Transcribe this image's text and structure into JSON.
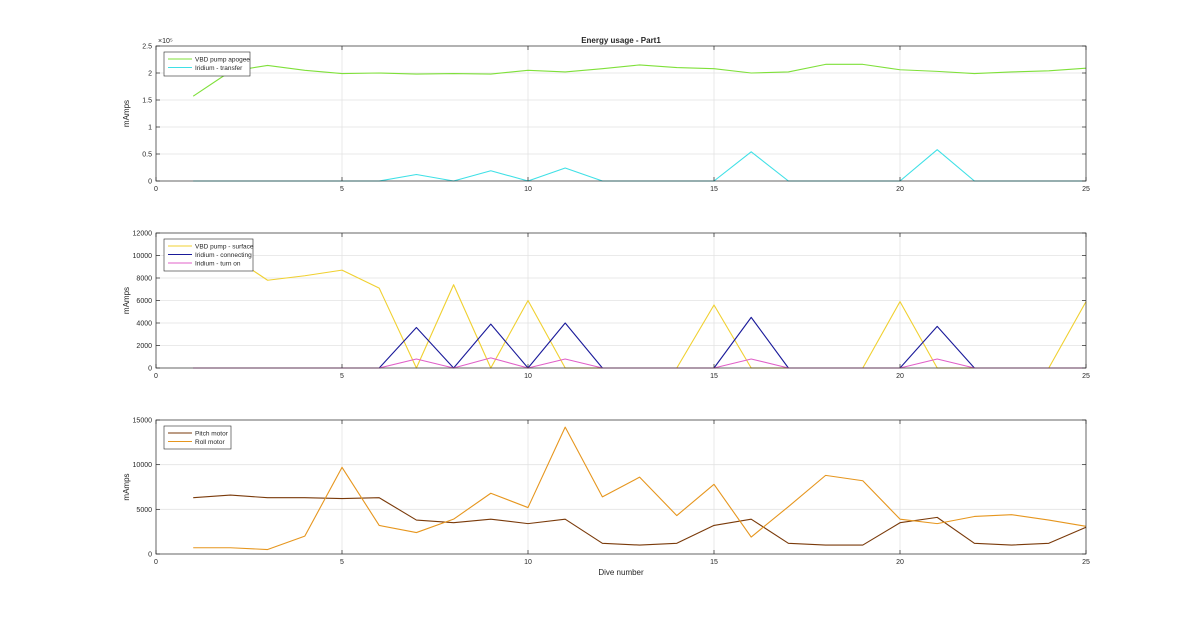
{
  "figure_title": "Energy usage - Part1",
  "chart_data": [
    {
      "type": "line",
      "title": "Energy usage - Part1",
      "xlabel": "",
      "ylabel": "mAmps",
      "xlim": [
        0,
        25
      ],
      "ylim": [
        0,
        250000
      ],
      "xticks": [
        0,
        5,
        10,
        15,
        20,
        25
      ],
      "yticks": [
        0,
        50000,
        100000,
        150000,
        200000,
        250000
      ],
      "ytick_labels": [
        "0",
        "0.5",
        "1",
        "1.5",
        "2",
        "2.5"
      ],
      "y_exponent_label": "×10⁵",
      "grid": true,
      "legend_position": "top-left",
      "x": [
        1,
        2,
        3,
        4,
        5,
        6,
        7,
        8,
        9,
        10,
        11,
        12,
        13,
        14,
        15,
        16,
        17,
        18,
        19,
        20,
        21,
        22,
        23,
        24,
        25
      ],
      "series": [
        {
          "name": "VBD pump apogee",
          "color": "#7fe03a",
          "values": [
            157000,
            203000,
            214000,
            205000,
            199000,
            200000,
            198000,
            199000,
            198000,
            205000,
            202000,
            208000,
            215000,
            210000,
            208000,
            200000,
            202000,
            216000,
            216000,
            206000,
            203000,
            199000,
            202000,
            204000,
            209000
          ]
        },
        {
          "name": "Iridium - transfer",
          "color": "#3fe0e6",
          "values": [
            0,
            0,
            0,
            0,
            0,
            0,
            12000,
            0,
            19000,
            0,
            24000,
            0,
            0,
            0,
            0,
            54000,
            0,
            0,
            0,
            0,
            58000,
            0,
            0,
            0,
            0
          ]
        }
      ]
    },
    {
      "type": "line",
      "title": "",
      "xlabel": "",
      "ylabel": "mAmps",
      "xlim": [
        0,
        25
      ],
      "ylim": [
        0,
        12000
      ],
      "xticks": [
        0,
        5,
        10,
        15,
        20,
        25
      ],
      "yticks": [
        0,
        2000,
        4000,
        6000,
        8000,
        10000,
        12000
      ],
      "ytick_labels": [
        "0",
        "2000",
        "4000",
        "6000",
        "8000",
        "10000",
        "12000"
      ],
      "grid": true,
      "legend_position": "top-left",
      "x": [
        1,
        2,
        3,
        4,
        5,
        6,
        7,
        8,
        9,
        10,
        11,
        12,
        13,
        14,
        15,
        16,
        17,
        18,
        19,
        20,
        21,
        22,
        23,
        24,
        25
      ],
      "series": [
        {
          "name": "VBD pump - surface",
          "color": "#f0d030",
          "values": [
            10500,
            10000,
            7800,
            8200,
            8700,
            7100,
            0,
            7400,
            0,
            6000,
            0,
            0,
            0,
            0,
            5600,
            0,
            0,
            0,
            0,
            5900,
            0,
            0,
            0,
            0,
            5900
          ]
        },
        {
          "name": "Iridium - connecting",
          "color": "#1a1a9a",
          "values": [
            0,
            0,
            0,
            0,
            0,
            0,
            3600,
            0,
            3900,
            0,
            4000,
            0,
            0,
            0,
            0,
            4500,
            0,
            0,
            0,
            0,
            3700,
            0,
            0,
            0,
            0
          ]
        },
        {
          "name": "Iridium - turn on",
          "color": "#e060c8",
          "values": [
            0,
            0,
            0,
            0,
            0,
            0,
            800,
            0,
            900,
            0,
            800,
            0,
            0,
            0,
            0,
            800,
            0,
            0,
            0,
            0,
            800,
            0,
            0,
            0,
            0
          ]
        }
      ]
    },
    {
      "type": "line",
      "title": "",
      "xlabel": "Dive number",
      "ylabel": "mAmps",
      "xlim": [
        0,
        25
      ],
      "ylim": [
        0,
        15000
      ],
      "xticks": [
        0,
        5,
        10,
        15,
        20,
        25
      ],
      "yticks": [
        0,
        5000,
        10000,
        15000
      ],
      "ytick_labels": [
        "0",
        "5000",
        "10000",
        "15000"
      ],
      "grid": true,
      "legend_position": "top-left",
      "x": [
        1,
        2,
        3,
        4,
        5,
        6,
        7,
        8,
        9,
        10,
        11,
        12,
        13,
        14,
        15,
        16,
        17,
        18,
        19,
        20,
        21,
        22,
        23,
        24,
        25
      ],
      "series": [
        {
          "name": "Pitch motor",
          "color": "#7a3a0a",
          "values": [
            6300,
            6600,
            6300,
            6300,
            6200,
            6300,
            3800,
            3500,
            3900,
            3400,
            3900,
            1200,
            1000,
            1200,
            3200,
            3900,
            1200,
            1000,
            1000,
            3500,
            4100,
            1200,
            1000,
            1200,
            3000
          ]
        },
        {
          "name": "Roll motor",
          "color": "#e6961e",
          "values": [
            700,
            700,
            500,
            2000,
            9700,
            3200,
            2400,
            3900,
            6800,
            5200,
            14200,
            6400,
            8600,
            4300,
            7800,
            1900,
            5300,
            8800,
            8200,
            3900,
            3400,
            4200,
            4400,
            3800,
            3100
          ]
        }
      ]
    }
  ]
}
